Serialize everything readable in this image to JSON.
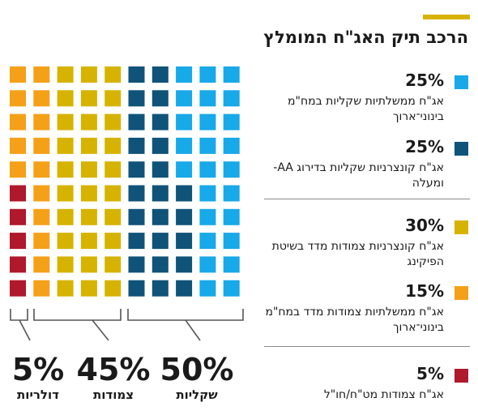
{
  "title": "הרכב תיק האג\"ח המומלץ",
  "colors": {
    "accent": "#d6b300",
    "shekel_nominal": "#17a9e8",
    "shekel_corporate": "#0f5379",
    "corporate_cpi": "#d6b300",
    "government_cpi": "#f5a019",
    "dollar": "#b0182c"
  },
  "legend": [
    {
      "pct": "25%",
      "text": "אג\"ח ממשלתיות שקליות במח\"מ בינוני־ארוך"
    },
    {
      "pct": "25%",
      "text": "אג\"ח קונצרניות שקליות בדירוג AA- ומעלה"
    },
    {
      "pct": "30%",
      "text": "אג\"ח קונצרניות צמודות מדד בשיטת הפיקינג"
    },
    {
      "pct": "15%",
      "text": "אג\"ח ממשלתיות צמודות מדד במח\"מ בינוני־ארוך"
    },
    {
      "pct": "5%",
      "text": "אג\"ח צמודות מט\"ח/חו\"ל"
    }
  ],
  "summary": [
    {
      "value": "50%",
      "label": "שקליות"
    },
    {
      "value": "45%",
      "label": "צמודות"
    },
    {
      "value": "5%",
      "label": "דולריות"
    }
  ],
  "chart_data": {
    "type": "waffle",
    "grid": {
      "rows": 10,
      "cols": 10
    },
    "series": [
      {
        "name": "אג\"ח ממשלתיות שקליות במח\"מ בינוני־ארוך",
        "value": 25,
        "color": "#17a9e8"
      },
      {
        "name": "אג\"ח קונצרניות שקליות בדירוג AA- ומעלה",
        "value": 25,
        "color": "#0f5379"
      },
      {
        "name": "אג\"ח קונצרניות צמודות מדד בשיטת הפיקינג",
        "value": 30,
        "color": "#d6b300"
      },
      {
        "name": "אג\"ח ממשלתיות צמודות מדד במח\"מ בינוני־ארוך",
        "value": 15,
        "color": "#f5a019"
      },
      {
        "name": "אג\"ח צמודות מט\"ח/חו\"ל",
        "value": 5,
        "color": "#b0182c"
      }
    ],
    "groups": [
      {
        "label": "שקליות",
        "value": 50
      },
      {
        "label": "צמודות",
        "value": 45
      },
      {
        "label": "דולריות",
        "value": 5
      }
    ]
  }
}
